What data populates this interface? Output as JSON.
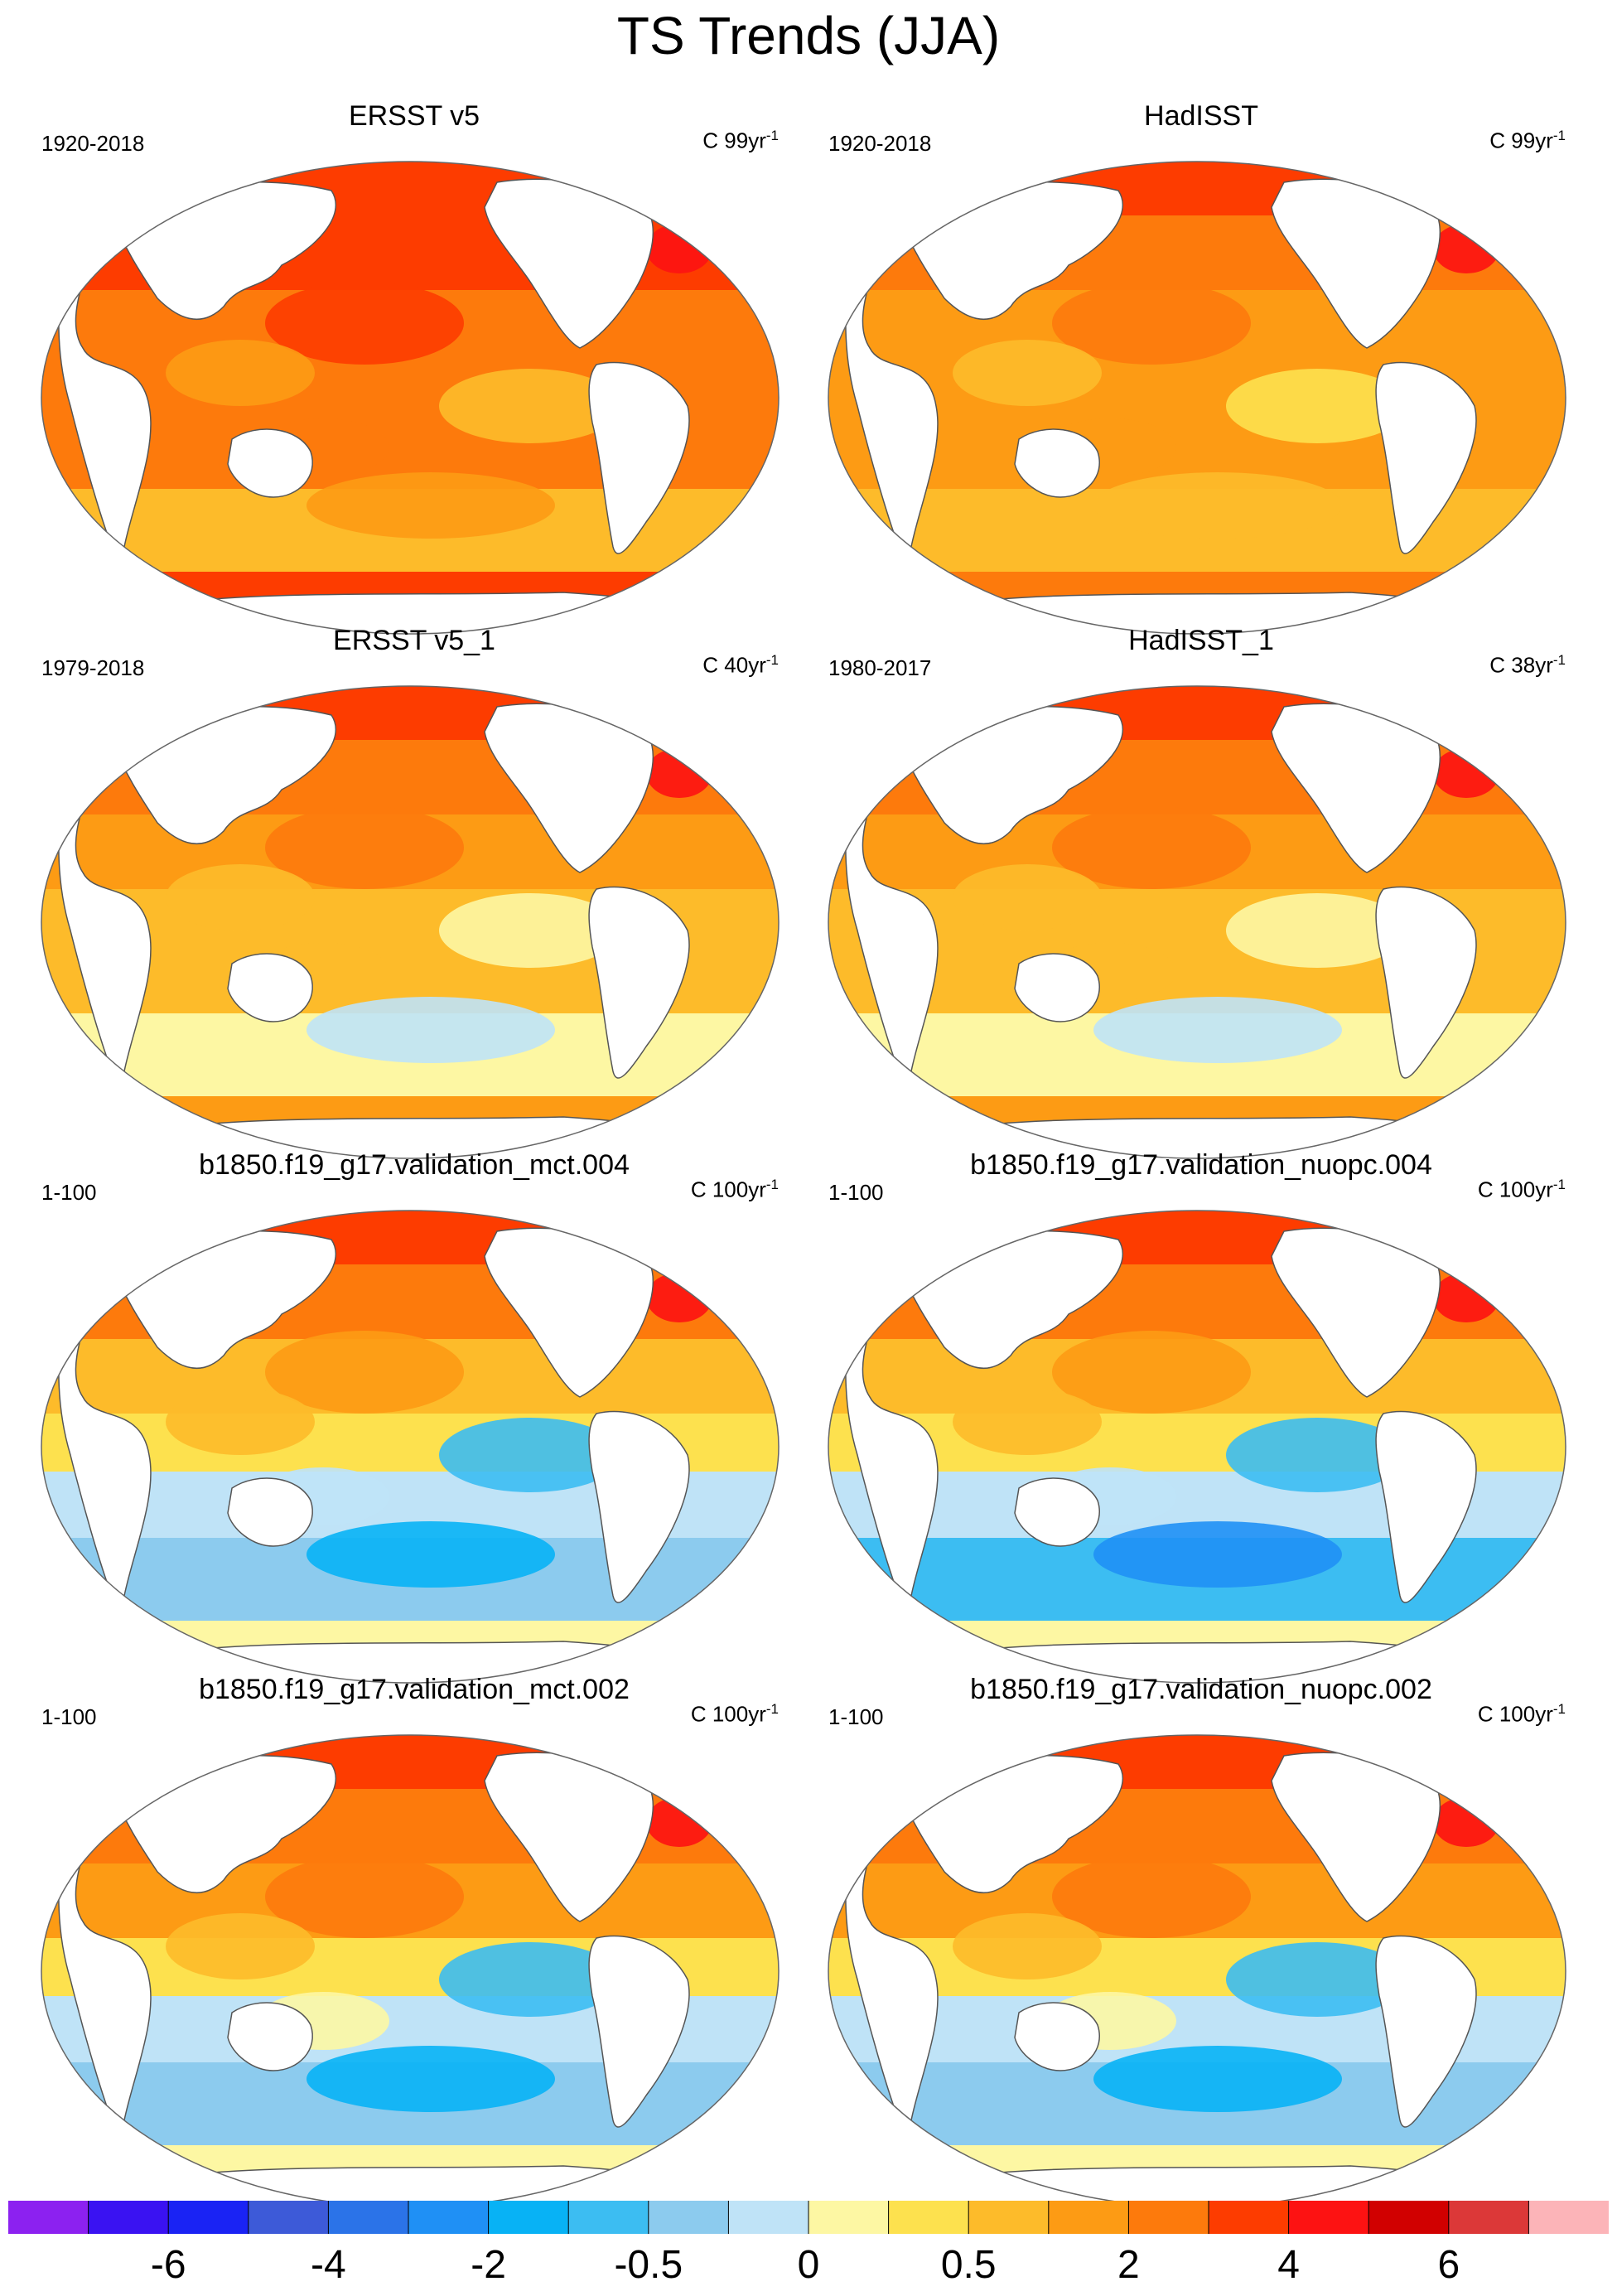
{
  "figure": {
    "title": "TS Trends (JJA)"
  },
  "panels": [
    {
      "title": "ERSST v5",
      "period": "1920-2018",
      "units_prefix": "C 99yr",
      "units_exp": "-1",
      "pattern": {
        "north": 0.9,
        "tropics": 0.8,
        "south": 0.6,
        "cold_spots": 0.05
      }
    },
    {
      "title": "HadISST",
      "period": "1920-2018",
      "units_prefix": "C 99yr",
      "units_exp": "-1",
      "pattern": {
        "north": 0.85,
        "tropics": 0.6,
        "south": 0.5,
        "cold_spots": 0.2
      }
    },
    {
      "title": "ERSST v5_1",
      "period": "1979-2018",
      "units_prefix": "C 40yr",
      "units_exp": "-1",
      "pattern": {
        "north": 0.85,
        "tropics": 0.6,
        "south": 0.2,
        "cold_spots": 0.35
      }
    },
    {
      "title": "HadISST_1",
      "period": "1980-2017",
      "units_prefix": "C 38yr",
      "units_exp": "-1",
      "pattern": {
        "north": 0.8,
        "tropics": 0.55,
        "south": 0.25,
        "cold_spots": 0.4
      }
    },
    {
      "title": "b1850.f19_g17.validation_mct.004",
      "period": "1-100",
      "units_prefix": "C 100yr",
      "units_exp": "-1",
      "pattern": {
        "north": 0.75,
        "tropics": 0.45,
        "south": -0.3,
        "cold_spots": 0.6
      }
    },
    {
      "title": "b1850.f19_g17.validation_nuopc.004",
      "period": "1-100",
      "units_prefix": "C 100yr",
      "units_exp": "-1",
      "pattern": {
        "north": 0.75,
        "tropics": 0.45,
        "south": -0.35,
        "cold_spots": 0.6
      }
    },
    {
      "title": "b1850.f19_g17.validation_mct.002",
      "period": "1-100",
      "units_prefix": "C 100yr",
      "units_exp": "-1",
      "pattern": {
        "north": 0.8,
        "tropics": 0.5,
        "south": -0.25,
        "cold_spots": 0.55
      }
    },
    {
      "title": "b1850.f19_g17.validation_nuopc.002",
      "period": "1-100",
      "units_prefix": "C 100yr",
      "units_exp": "-1",
      "pattern": {
        "north": 0.8,
        "tropics": 0.5,
        "south": -0.25,
        "cold_spots": 0.55
      }
    }
  ],
  "colorbar": {
    "colors": [
      "#8c21f0",
      "#3a12f2",
      "#1a23f4",
      "#3d5ad8",
      "#2b73e8",
      "#1f90f5",
      "#08b2f5",
      "#3cbdf2",
      "#8ccbee",
      "#bfe3f7",
      "#fdf7a3",
      "#fde14e",
      "#fdbb2a",
      "#fd9b14",
      "#fd7a0c",
      "#fd3c00",
      "#fd1212",
      "#d10000",
      "#dc3838",
      "#fcb4b8"
    ],
    "tick_labels": [
      {
        "text": "-6",
        "index": 2
      },
      {
        "text": "-4",
        "index": 4
      },
      {
        "text": "-2",
        "index": 6
      },
      {
        "text": "-0.5",
        "index": 8
      },
      {
        "text": "0",
        "index": 10
      },
      {
        "text": "0.5",
        "index": 12
      },
      {
        "text": "2",
        "index": 14
      },
      {
        "text": "4",
        "index": 16
      },
      {
        "text": "6",
        "index": 18
      }
    ]
  }
}
